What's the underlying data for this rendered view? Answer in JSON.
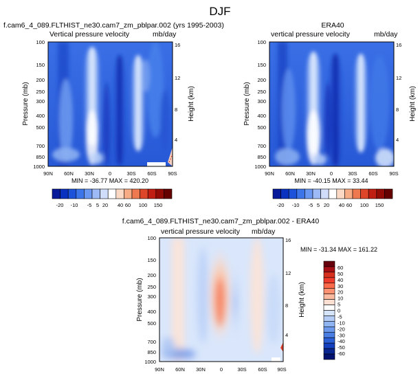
{
  "page_title": "DJF",
  "chart_data": [
    {
      "id": "model",
      "type": "heatmap",
      "title": "f.cam6_4_089.FLTHIST_ne30.cam7_zm_pblpar.002 (yrs 1995-2003)",
      "left_label": "Vertical pressure velocity",
      "right_label": "mb/day",
      "xlabel": "",
      "ylabel": "Pressure (mb)",
      "y2label": "Height (km)",
      "x_ticks": [
        "90N",
        "60N",
        "30N",
        "0",
        "30S",
        "60S",
        "90S"
      ],
      "y_ticks": [
        "100",
        "150",
        "200",
        "250",
        "300",
        "400",
        "500",
        "700",
        "850",
        "1000"
      ],
      "y2_ticks": [
        "16",
        "12",
        "8",
        "4"
      ],
      "stats": "MIN = -36.77  MAX = 420.20",
      "xlim": [
        90,
        -90
      ],
      "ylim": [
        1000,
        100
      ]
    },
    {
      "id": "obs",
      "type": "heatmap",
      "title": "ERA40",
      "left_label": "vertical pressure velocity",
      "right_label": "mb/day",
      "xlabel": "",
      "ylabel": "Pressure (mb)",
      "y2label": "Height (km)",
      "x_ticks": [
        "90N",
        "60N",
        "30N",
        "0",
        "30S",
        "60S",
        "90S"
      ],
      "y_ticks": [
        "100",
        "150",
        "200",
        "250",
        "300",
        "400",
        "500",
        "700",
        "850",
        "1000"
      ],
      "y2_ticks": [
        "16",
        "12",
        "8",
        "4"
      ],
      "stats": "MIN = -40.15  MAX =  33.44",
      "xlim": [
        90,
        -90
      ],
      "ylim": [
        1000,
        100
      ]
    },
    {
      "id": "diff",
      "type": "heatmap",
      "title": "f.cam6_4_089.FLTHIST_ne30.cam7_zm_pblpar.002 - ERA40",
      "left_label": "vertical pressure velocity",
      "right_label": "mb/day",
      "xlabel": "",
      "ylabel": "Pressure (mb)",
      "y2label": "Height (km)",
      "x_ticks": [
        "90N",
        "60N",
        "30N",
        "0",
        "30S",
        "60S",
        "90S"
      ],
      "y_ticks": [
        "100",
        "150",
        "200",
        "250",
        "300",
        "400",
        "500",
        "700",
        "850",
        "1000"
      ],
      "y2_ticks": [
        "16",
        "12",
        "8",
        "4"
      ],
      "stats": "MIN = -31.34  MAX = 161.22",
      "xlim": [
        90,
        -90
      ],
      "ylim": [
        1000,
        100
      ]
    }
  ],
  "colorbars": {
    "abs": {
      "labels": [
        "-20",
        "-10",
        "-5",
        "5",
        "20",
        "40",
        "60",
        "100",
        "150"
      ],
      "colors": [
        "#061a9a",
        "#0a32c0",
        "#1b52d9",
        "#3c74ea",
        "#6a97f2",
        "#9ebaf6",
        "#cfddfa",
        "#ffffff",
        "#fbd9c4",
        "#f7ac86",
        "#ee7850",
        "#dd4628",
        "#c01e12",
        "#920c05",
        "#650200"
      ]
    },
    "diff": {
      "labels": [
        "60",
        "50",
        "40",
        "30",
        "20",
        "10",
        "5",
        "0",
        "-5",
        "-10",
        "-20",
        "-30",
        "-40",
        "-50",
        "-60"
      ],
      "colors": [
        "#67000d",
        "#a50f15",
        "#d7301f",
        "#ef3b2c",
        "#fb6a4a",
        "#fc9272",
        "#fcbba1",
        "#fde0d2",
        "#ffffff",
        "#d6e4fa",
        "#b3cdf7",
        "#8fb4f2",
        "#6c99ec",
        "#4a7ee3",
        "#2a5fd6",
        "#143fbf",
        "#0a2690",
        "#041270"
      ]
    }
  }
}
